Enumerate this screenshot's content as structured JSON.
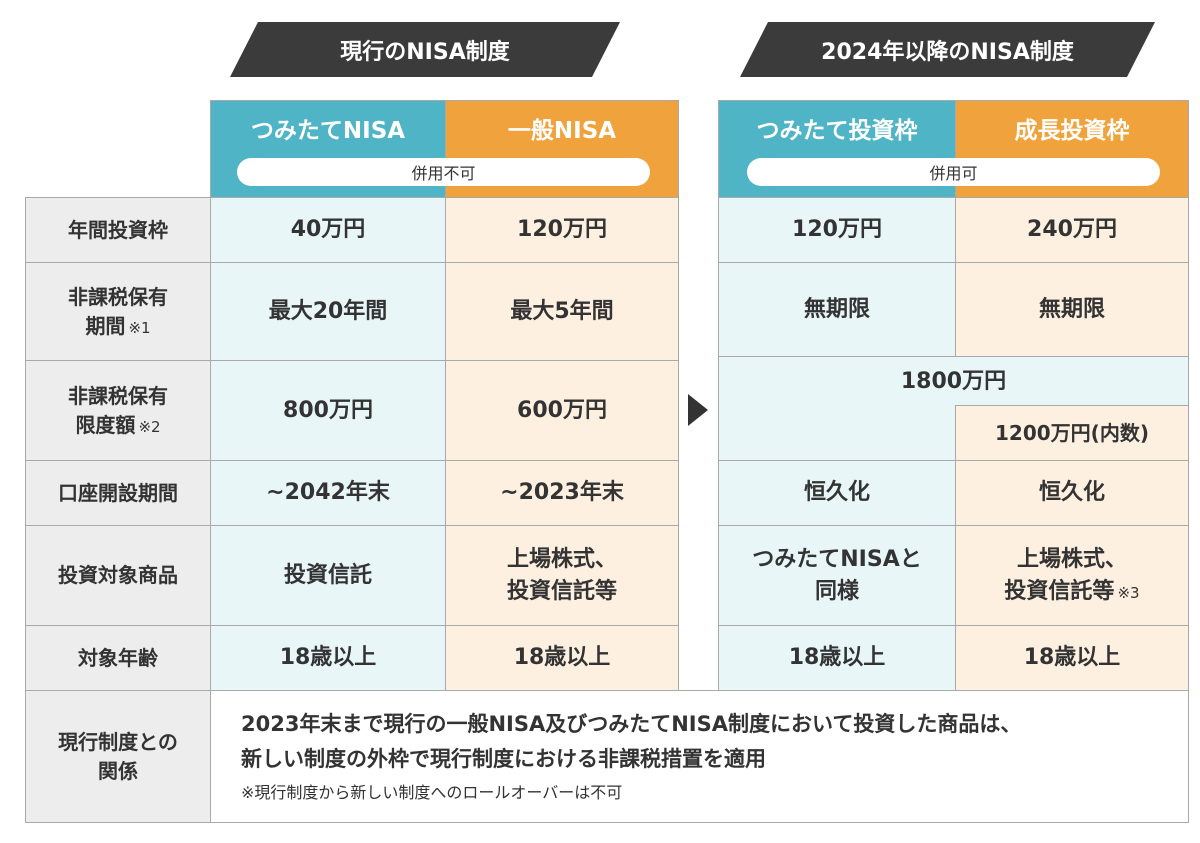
{
  "banners": {
    "current": "現行のNISA制度",
    "new": "2024年以降のNISA制度"
  },
  "current_system": {
    "tsumitate_header": "つみたてNISA",
    "ippan_header": "一般NISA",
    "combination": "併用不可"
  },
  "new_system": {
    "tsumitate_header": "つみたて投資枠",
    "growth_header": "成長投資枠",
    "combination": "併用可"
  },
  "rows": [
    {
      "label": [
        "年間投資枠"
      ],
      "current_tsumitate": [
        "40万円"
      ],
      "current_ippan": [
        "120万円"
      ],
      "new_tsumitate": [
        "120万円"
      ],
      "new_growth": [
        "240万円"
      ]
    },
    {
      "label": [
        "非課税保有",
        "期間"
      ],
      "label_note": "※1",
      "current_tsumitate": [
        "最大20年間"
      ],
      "current_ippan": [
        "最大5年間"
      ],
      "new_tsumitate": [
        "無期限"
      ],
      "new_growth": [
        "無期限"
      ]
    },
    {
      "label": [
        "非課税保有",
        "限度額"
      ],
      "label_note": "※2",
      "current_tsumitate": [
        "800万円"
      ],
      "current_ippan": [
        "600万円"
      ],
      "new_combined": "1800万円",
      "new_growth_inner": "1200万円(内数)"
    },
    {
      "label": [
        "口座開設期間"
      ],
      "current_tsumitate": [
        "~2042年末"
      ],
      "current_ippan": [
        "~2023年末"
      ],
      "new_tsumitate": [
        "恒久化"
      ],
      "new_growth": [
        "恒久化"
      ]
    },
    {
      "label": [
        "投資対象商品"
      ],
      "current_tsumitate": [
        "投資信託"
      ],
      "current_ippan": [
        "上場株式、",
        "投資信託等"
      ],
      "new_tsumitate": [
        "つみたてNISAと",
        "同様"
      ],
      "new_growth": [
        "上場株式、",
        "投資信託等"
      ],
      "new_growth_note": "※3"
    },
    {
      "label": [
        "対象年齢"
      ],
      "current_tsumitate": [
        "18歳以上"
      ],
      "current_ippan": [
        "18歳以上"
      ],
      "new_tsumitate": [
        "18歳以上"
      ],
      "new_growth": [
        "18歳以上"
      ]
    }
  ],
  "relation": {
    "label": [
      "現行制度との",
      "関係"
    ],
    "lines": [
      "2023年末まで現行の一般NISA及びつみたてNISA制度において投資した商品は、",
      "新しい制度の外枠で現行制度における非課税措置を適用"
    ],
    "note": "※現行制度から新しい制度へのロールオーバーは不可"
  },
  "icons": {
    "transition": "arrow-right-icon"
  },
  "colors": {
    "banner": "#3b3b3b",
    "tsumitate": "#4fb4c5",
    "ippan_growth": "#f0a33c",
    "tsumitate_light": "#e8f6f8",
    "ippan_growth_light": "#fdf0e1",
    "row_header": "#ededed"
  }
}
